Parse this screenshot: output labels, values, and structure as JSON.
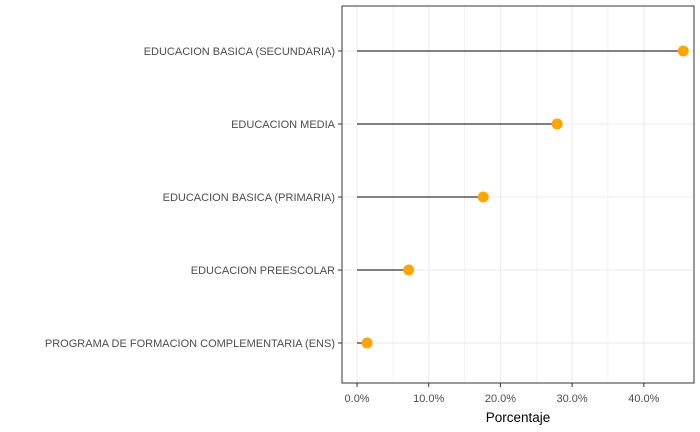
{
  "chart_data": {
    "type": "lollipop",
    "title": "",
    "xlabel": "Porcentaje",
    "ylabel": "",
    "categories": [
      "EDUCACION BASICA (SECUNDARIA)",
      "EDUCACION MEDIA",
      "EDUCACION BASICA (PRIMARIA)",
      "EDUCACION PREESCOLAR",
      "PROGRAMA DE FORMACION COMPLEMENTARIA (ENS)"
    ],
    "values": [
      45.5,
      27.9,
      17.6,
      7.2,
      1.4
    ],
    "xlim": [
      -2.1,
      47.0
    ],
    "x_ticks": [
      0,
      10,
      20,
      30,
      40
    ],
    "x_tick_labels": [
      "0.0%",
      "10.0%",
      "20.0%",
      "30.0%",
      "40.0%"
    ],
    "grid": true,
    "legend": "none",
    "colors": {
      "point": "#FFA500",
      "stem": "#000000",
      "grid": "#EBEBEB",
      "panel_border": "#333333"
    }
  }
}
